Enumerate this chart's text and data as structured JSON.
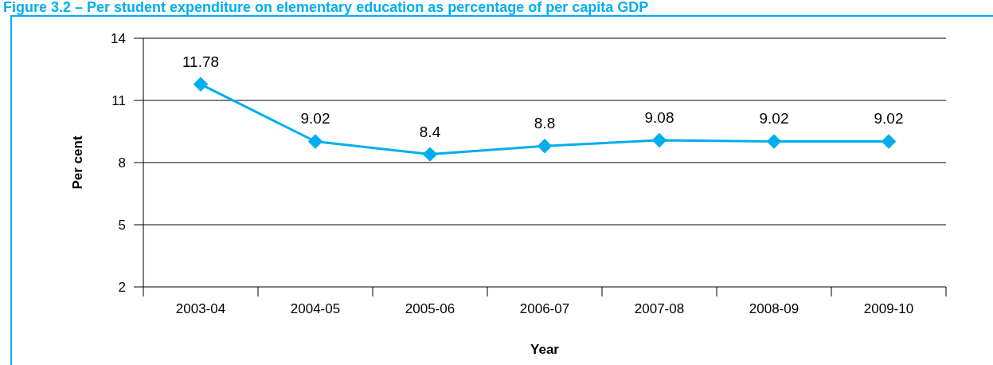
{
  "chart_data": {
    "type": "line",
    "title": "Figure 3.2 – Per student expenditure on elementary education as percentage of per capita GDP",
    "xlabel": "Year",
    "ylabel": "Per cent",
    "categories": [
      "2003-04",
      "2004-05",
      "2005-06",
      "2006-07",
      "2007-08",
      "2008-09",
      "2009-10"
    ],
    "series": [
      {
        "color": "#00aeef",
        "values": [
          11.78,
          9.02,
          8.4,
          8.8,
          9.08,
          9.02,
          9.02
        ]
      }
    ],
    "ylim": [
      2,
      14
    ],
    "yticks": [
      2,
      5,
      8,
      11,
      14
    ],
    "grid": "y",
    "marker": "diamond",
    "line_style": "solid",
    "data_labels": true
  }
}
